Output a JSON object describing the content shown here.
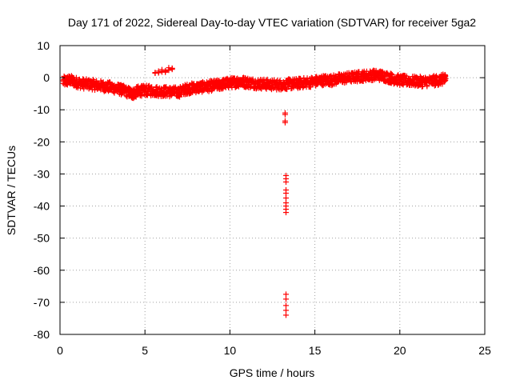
{
  "colors": {
    "series": "#ff0000",
    "grid": "#a0a0a0",
    "axis": "#000000",
    "background": "#ffffff"
  },
  "chart_data": {
    "type": "scatter",
    "title": "Day 171 of 2022, Sidereal Day-to-day VTEC variation (SDTVAR) for receiver 5ga2",
    "xlabel": "GPS time / hours",
    "ylabel": "SDTVAR / TECUs",
    "xlim": [
      0,
      25
    ],
    "ylim": [
      -80,
      10
    ],
    "xticks": [
      0,
      5,
      10,
      15,
      20,
      25
    ],
    "yticks": [
      10,
      0,
      -10,
      -20,
      -30,
      -40,
      -50,
      -60,
      -70,
      -80
    ],
    "grid": true,
    "marker": "plus",
    "series": [
      {
        "name": "SDTVAR",
        "band": [
          [
            0.2,
            -1.2
          ],
          [
            0.6,
            -0.8
          ],
          [
            1.0,
            -1.5
          ],
          [
            1.5,
            -2.0
          ],
          [
            2.0,
            -2.2
          ],
          [
            2.5,
            -2.6
          ],
          [
            3.0,
            -3.0
          ],
          [
            3.5,
            -3.6
          ],
          [
            4.0,
            -4.5
          ],
          [
            4.3,
            -5.0
          ],
          [
            4.6,
            -4.2
          ],
          [
            5.0,
            -4.0
          ],
          [
            5.5,
            -4.1
          ],
          [
            6.0,
            -4.3
          ],
          [
            6.5,
            -4.4
          ],
          [
            7.0,
            -4.5
          ],
          [
            7.4,
            -3.6
          ],
          [
            7.8,
            -3.2
          ],
          [
            8.2,
            -3.0
          ],
          [
            8.6,
            -2.8
          ],
          [
            9.0,
            -2.5
          ],
          [
            9.4,
            -2.2
          ],
          [
            9.8,
            -1.8
          ],
          [
            10.2,
            -1.5
          ],
          [
            10.6,
            -1.2
          ],
          [
            11.0,
            -1.5
          ],
          [
            11.5,
            -1.8
          ],
          [
            12.0,
            -2.0
          ],
          [
            12.5,
            -2.2
          ],
          [
            13.0,
            -2.2
          ],
          [
            13.5,
            -2.0
          ],
          [
            14.0,
            -1.8
          ],
          [
            14.5,
            -1.5
          ],
          [
            15.0,
            -1.2
          ],
          [
            15.5,
            -0.8
          ],
          [
            16.0,
            -0.8
          ],
          [
            16.5,
            -0.3
          ],
          [
            17.0,
            0.0
          ],
          [
            17.5,
            0.3
          ],
          [
            18.0,
            0.6
          ],
          [
            18.5,
            0.8
          ],
          [
            19.0,
            0.6
          ],
          [
            19.5,
            -0.2
          ],
          [
            20.0,
            -0.8
          ],
          [
            20.5,
            -1.0
          ],
          [
            21.0,
            -1.2
          ],
          [
            21.5,
            -1.2
          ],
          [
            22.0,
            -1.0
          ],
          [
            22.5,
            -0.6
          ],
          [
            22.7,
            -0.3
          ]
        ],
        "cluster": [
          [
            5.6,
            2.0
          ],
          [
            5.8,
            1.8
          ],
          [
            6.0,
            2.2
          ],
          [
            6.2,
            2.0
          ],
          [
            6.4,
            2.6
          ],
          [
            6.6,
            2.8
          ]
        ],
        "outliers": [
          [
            13.25,
            -11.0
          ],
          [
            13.25,
            -11.5
          ],
          [
            13.25,
            -13.5
          ],
          [
            13.25,
            -14.0
          ],
          [
            13.3,
            -30.5
          ],
          [
            13.3,
            -31.5
          ],
          [
            13.3,
            -32.5
          ],
          [
            13.3,
            -35.0
          ],
          [
            13.3,
            -36.0
          ],
          [
            13.3,
            -37.5
          ],
          [
            13.3,
            -39.0
          ],
          [
            13.3,
            -40.0
          ],
          [
            13.3,
            -41.0
          ],
          [
            13.3,
            -42.0
          ],
          [
            13.3,
            -67.5
          ],
          [
            13.3,
            -69.0
          ],
          [
            13.3,
            -71.0
          ],
          [
            13.3,
            -72.5
          ],
          [
            13.3,
            -74.0
          ]
        ]
      }
    ]
  }
}
